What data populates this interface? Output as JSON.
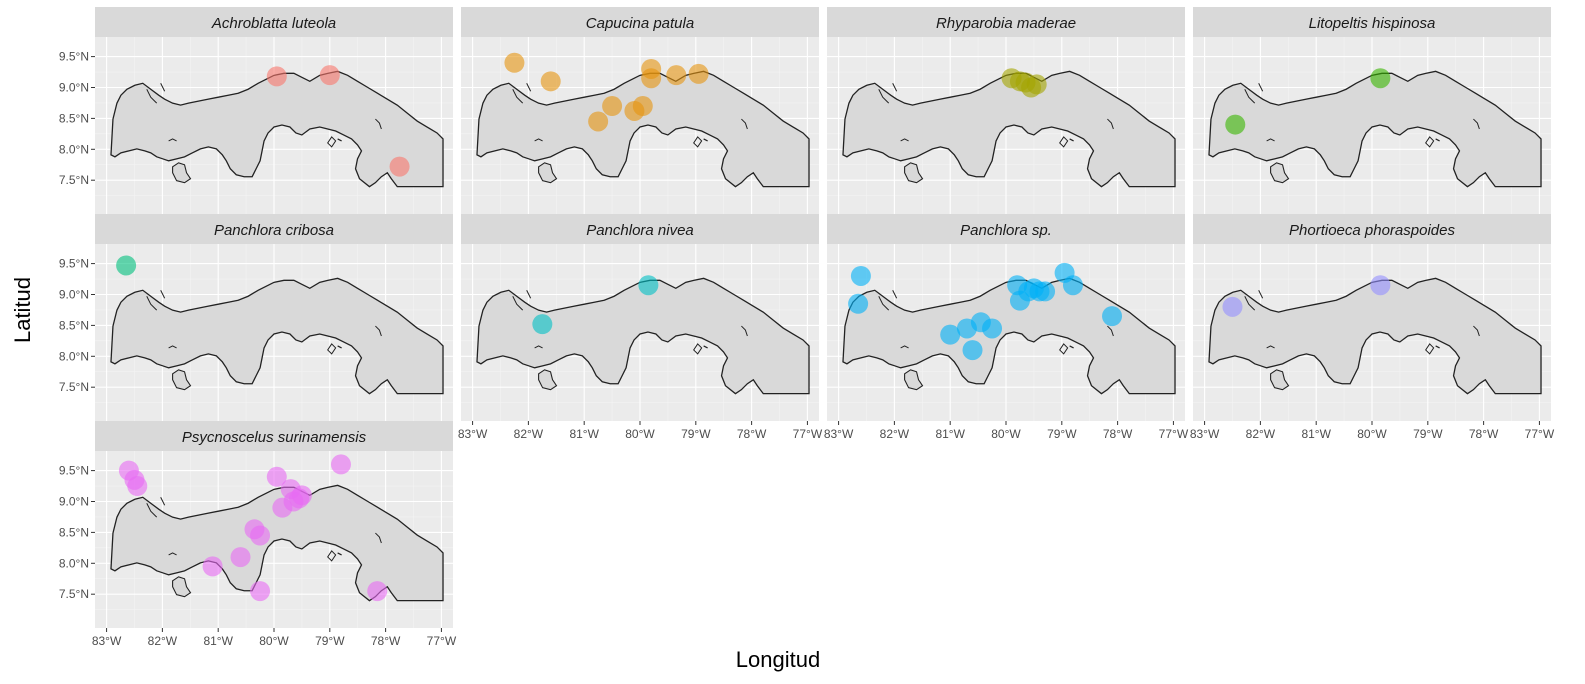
{
  "chart_data": {
    "type": "scatter",
    "xlabel": "Longitud",
    "ylabel": "Latitud",
    "xlim": [
      -83.1,
      -76.9
    ],
    "ylim": [
      7.05,
      9.72
    ],
    "x_ticks": [
      -83,
      -82,
      -81,
      -80,
      -79,
      -78,
      -77
    ],
    "x_tick_labels": [
      "83°W",
      "82°W",
      "81°W",
      "80°W",
      "79°W",
      "78°W",
      "77°W"
    ],
    "y_ticks": [
      7.5,
      8.0,
      8.5,
      9.0,
      9.5
    ],
    "y_tick_labels": [
      "7.5°N",
      "8.0°N",
      "8.5°N",
      "9.0°N",
      "9.5°N"
    ],
    "grid": true,
    "legend": "none",
    "panels": [
      {
        "name": "Achroblatta luteola",
        "color": "#f8766d",
        "points": [
          [
            -79.95,
            9.18
          ],
          [
            -79.0,
            9.2
          ],
          [
            -77.75,
            7.72
          ]
        ]
      },
      {
        "name": "Capucina patula",
        "color": "#e6950f",
        "points": [
          [
            -82.25,
            9.4
          ],
          [
            -81.6,
            9.1
          ],
          [
            -80.75,
            8.45
          ],
          [
            -80.5,
            8.7
          ],
          [
            -80.1,
            8.62
          ],
          [
            -79.95,
            8.7
          ],
          [
            -79.8,
            9.15
          ],
          [
            -79.8,
            9.3
          ],
          [
            -79.35,
            9.2
          ],
          [
            -78.95,
            9.22
          ]
        ]
      },
      {
        "name": "Rhyparobia maderae",
        "color": "#a3a500",
        "points": [
          [
            -79.9,
            9.15
          ],
          [
            -79.75,
            9.1
          ],
          [
            -79.65,
            9.08
          ],
          [
            -79.55,
            9.0
          ],
          [
            -79.45,
            9.05
          ]
        ]
      },
      {
        "name": "Litopeltis hispinosa",
        "color": "#39b600",
        "points": [
          [
            -79.85,
            9.15
          ],
          [
            -82.45,
            8.4
          ]
        ]
      },
      {
        "name": "Panchlora cribosa",
        "color": "#00bf7d",
        "points": [
          [
            -82.65,
            9.47
          ]
        ]
      },
      {
        "name": "Panchlora nivea",
        "color": "#00bfc4",
        "points": [
          [
            -79.85,
            9.15
          ],
          [
            -81.75,
            8.52
          ]
        ]
      },
      {
        "name": "Panchlora sp.",
        "color": "#00b0f6",
        "points": [
          [
            -82.6,
            9.3
          ],
          [
            -82.65,
            8.85
          ],
          [
            -81.0,
            8.35
          ],
          [
            -80.7,
            8.45
          ],
          [
            -80.45,
            8.55
          ],
          [
            -80.6,
            8.1
          ],
          [
            -80.25,
            8.45
          ],
          [
            -79.8,
            9.15
          ],
          [
            -79.75,
            8.9
          ],
          [
            -79.6,
            9.05
          ],
          [
            -79.5,
            9.1
          ],
          [
            -79.4,
            9.05
          ],
          [
            -79.3,
            9.05
          ],
          [
            -78.95,
            9.35
          ],
          [
            -78.8,
            9.15
          ],
          [
            -78.1,
            8.65
          ]
        ]
      },
      {
        "name": "Phortioeca phoraspoides",
        "color": "#9590ff",
        "points": [
          [
            -79.85,
            9.15
          ],
          [
            -82.5,
            8.8
          ]
        ]
      },
      {
        "name": "Psycnoscelus surinamensis",
        "color": "#e76bf3",
        "points": [
          [
            -82.6,
            9.5
          ],
          [
            -82.5,
            9.35
          ],
          [
            -82.45,
            9.25
          ],
          [
            -81.1,
            7.95
          ],
          [
            -80.6,
            8.1
          ],
          [
            -80.35,
            8.55
          ],
          [
            -80.25,
            8.45
          ],
          [
            -80.25,
            7.55
          ],
          [
            -79.95,
            9.4
          ],
          [
            -79.85,
            8.9
          ],
          [
            -79.7,
            9.2
          ],
          [
            -79.65,
            9.0
          ],
          [
            -79.55,
            9.05
          ],
          [
            -79.5,
            9.1
          ],
          [
            -78.8,
            9.6
          ],
          [
            -78.15,
            7.55
          ]
        ]
      }
    ]
  }
}
